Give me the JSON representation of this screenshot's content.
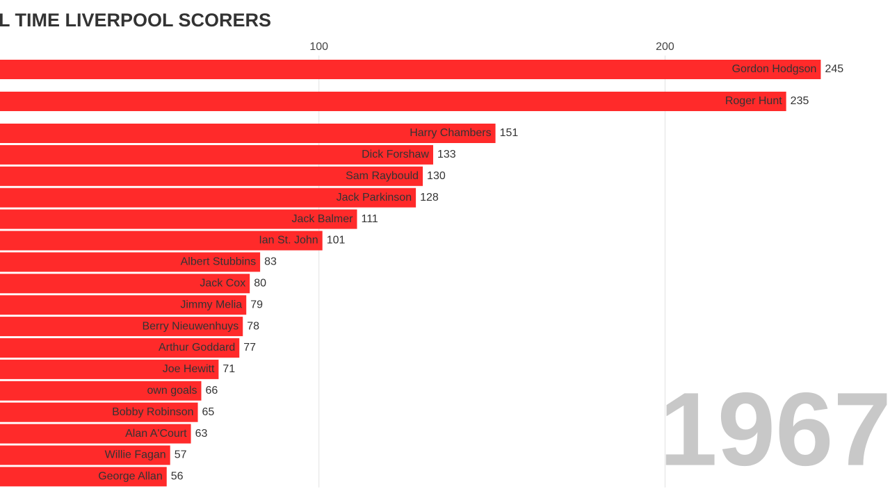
{
  "chart_data": {
    "type": "bar",
    "orientation": "horizontal",
    "title": "L TIME LIVERPOOL SCORERS",
    "year": "1967",
    "categories": [
      "Gordon Hodgson",
      "Roger Hunt",
      "Harry Chambers",
      "Dick Forshaw",
      "Sam Raybould",
      "Jack Parkinson",
      "Jack Balmer",
      "Ian St. John",
      "Albert Stubbins",
      "Jack Cox",
      "Jimmy Melia",
      "Berry Nieuwenhuys",
      "Arthur Goddard",
      "Joe Hewitt",
      "own goals",
      "Bobby Robinson",
      "Alan A'Court",
      "Willie Fagan",
      "George Allan"
    ],
    "values": [
      245,
      235,
      151,
      133,
      130,
      128,
      111,
      101,
      83,
      80,
      79,
      78,
      77,
      71,
      66,
      65,
      63,
      57,
      56
    ],
    "color": "#ff2a2a",
    "xlim": [
      0,
      265
    ],
    "xticks": [
      100,
      200
    ],
    "grid": true
  }
}
